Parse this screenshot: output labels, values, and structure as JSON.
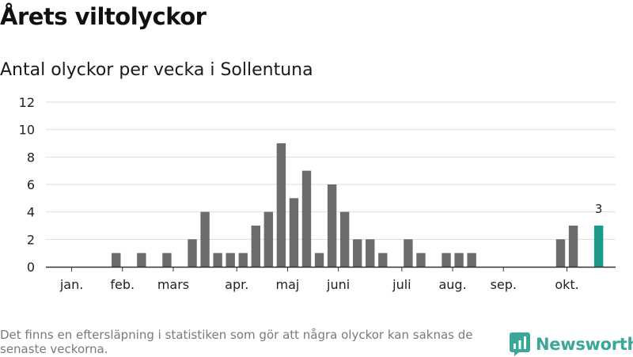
{
  "title": "Årets viltolyckor",
  "subtitle": "Antal olyckor per vecka i Sollentuna",
  "footnote": "Det finns en eftersläpning i statistiken som gör att några olyckor kan saknas de senaste veckorna.",
  "brand": {
    "name": "Newsworthy",
    "icon": "newsworthy-logo-icon"
  },
  "colors": {
    "bar": "#6d6b6e",
    "highlight": "#1a9c8c",
    "grid": "#dddddd",
    "axis": "#333333",
    "brand": "#3aa79a"
  },
  "chart_data": {
    "type": "bar",
    "title": "Antal olyckor per vecka i Sollentuna",
    "xlabel": "",
    "ylabel": "",
    "ylim": [
      0,
      12
    ],
    "yticks": [
      0,
      2,
      4,
      6,
      8,
      10,
      12
    ],
    "grid": true,
    "weeks_total": 45,
    "values": [
      0,
      0,
      0,
      0,
      0,
      1,
      0,
      1,
      0,
      1,
      0,
      2,
      4,
      1,
      1,
      1,
      3,
      4,
      9,
      5,
      7,
      1,
      6,
      4,
      2,
      2,
      1,
      0,
      2,
      1,
      0,
      1,
      1,
      1,
      0,
      0,
      0,
      0,
      0,
      0,
      2,
      3,
      0,
      3
    ],
    "month_labels": [
      {
        "label": "jan.",
        "week": 2.5
      },
      {
        "label": "feb.",
        "week": 6.5
      },
      {
        "label": "mars",
        "week": 10.5
      },
      {
        "label": "apr.",
        "week": 15.5
      },
      {
        "label": "maj",
        "week": 19.5
      },
      {
        "label": "juni",
        "week": 23.5
      },
      {
        "label": "juli",
        "week": 28.5
      },
      {
        "label": "aug.",
        "week": 32.5
      },
      {
        "label": "sep.",
        "week": 36.5
      },
      {
        "label": "okt.",
        "week": 41.5
      }
    ],
    "highlight": {
      "index": 43,
      "label": "3"
    }
  }
}
